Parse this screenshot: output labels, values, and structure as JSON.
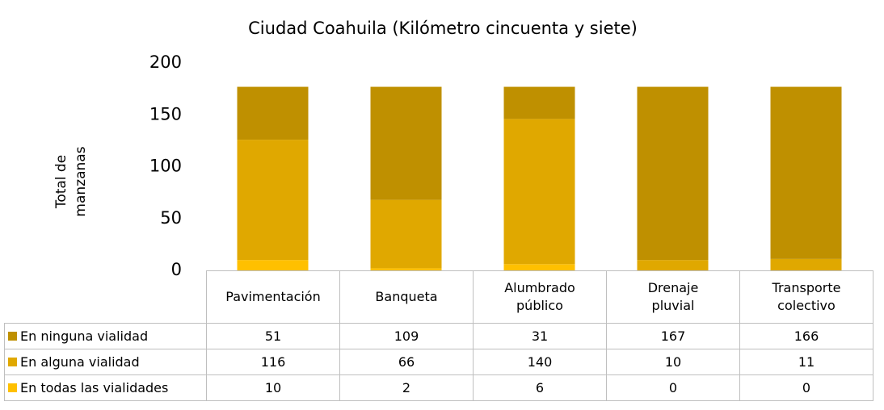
{
  "chart_data": {
    "type": "stacked_bar",
    "title": "Ciudad Coahuila (Kilómetro cincuenta y siete)",
    "ylabel": "Total de manzanas",
    "categories": [
      "Pavimentación",
      "Banqueta",
      "Alumbrado público",
      "Drenaje pluvial",
      "Transporte colectivo"
    ],
    "series": [
      {
        "name": "En ninguna vialidad",
        "color": "#bf9000",
        "values": [
          51,
          109,
          31,
          167,
          166
        ]
      },
      {
        "name": "En alguna vialidad",
        "color": "#e0a800",
        "values": [
          116,
          66,
          140,
          10,
          11
        ]
      },
      {
        "name": "En todas las vialidades",
        "color": "#ffc000",
        "values": [
          10,
          2,
          6,
          0,
          0
        ]
      }
    ],
    "ylim": [
      0,
      200
    ],
    "yticks": [
      0,
      50,
      100,
      150,
      200
    ],
    "grid": false
  }
}
